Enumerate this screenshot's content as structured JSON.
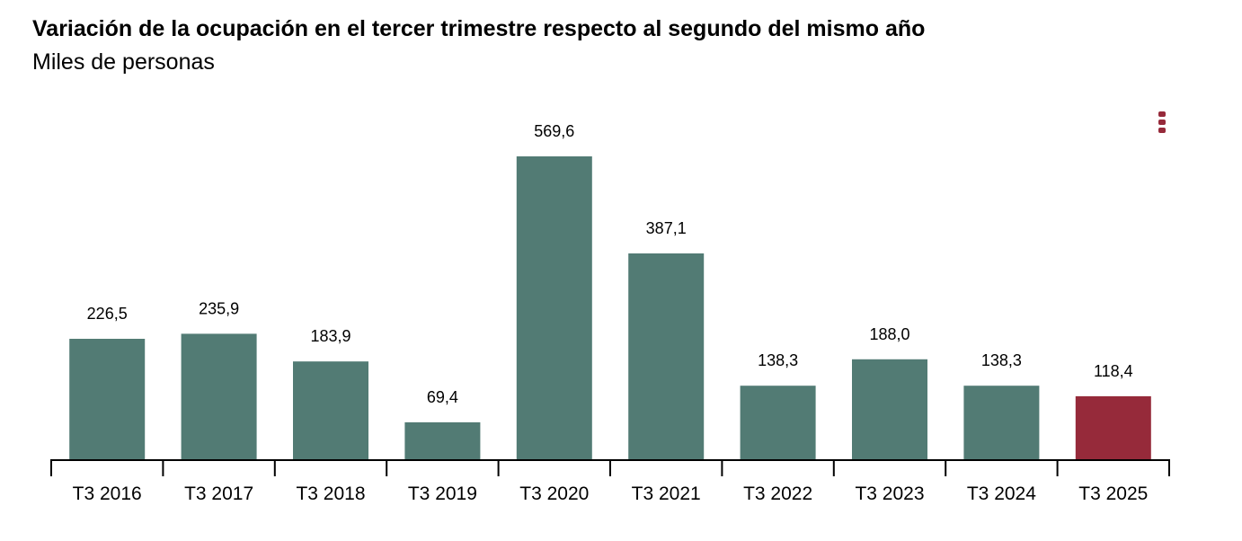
{
  "chart_data": {
    "type": "bar",
    "title": "Variación de la ocupación en el tercer trimestre respecto al segundo del mismo año",
    "subtitle": "Miles de personas",
    "xlabel": "",
    "ylabel": "",
    "categories": [
      "T3 2016",
      "T3 2017",
      "T3 2018",
      "T3 2019",
      "T3 2020",
      "T3 2021",
      "T3 2022",
      "T3 2023",
      "T3 2024",
      "T3 2025"
    ],
    "values": [
      226.5,
      235.9,
      183.9,
      69.4,
      569.6,
      387.1,
      138.3,
      188.0,
      138.3,
      118.4
    ],
    "value_labels": [
      "226,5",
      "235,9",
      "183,9",
      "69,4",
      "569,6",
      "387,1",
      "138,3",
      "188,0",
      "138,3",
      "118,4"
    ],
    "ylim": [
      0,
      569.6
    ],
    "grid": false,
    "legend": "none",
    "colors": {
      "bar": "#527b74",
      "highlight": "#962a3a",
      "axis": "#000000"
    },
    "highlight_index": 9
  },
  "menu": {
    "icon": "vertical-dots-icon"
  }
}
